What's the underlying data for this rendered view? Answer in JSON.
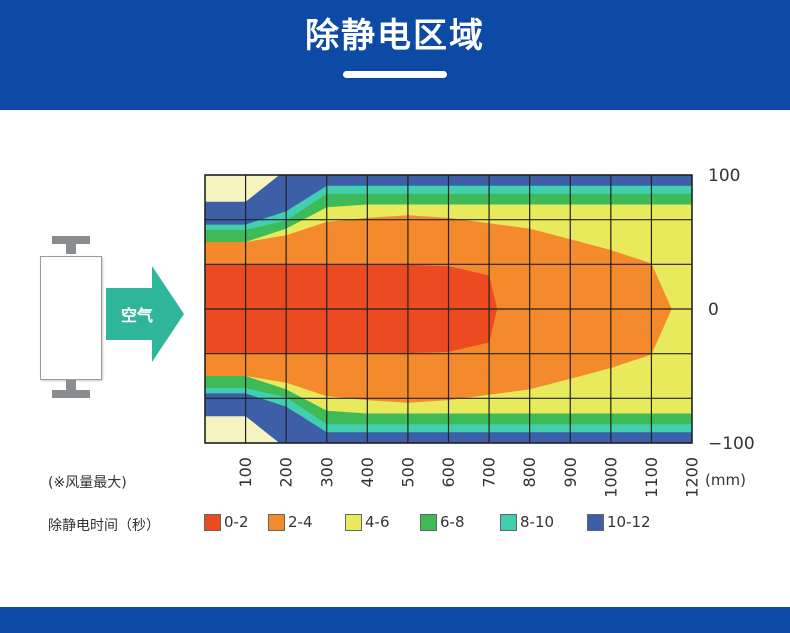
{
  "header": {
    "title": "除静电区域"
  },
  "arrow_label": "空气",
  "note": "(※风量最大)",
  "legend_title": "除静电时间（秒）",
  "chart_data": {
    "type": "heatmap",
    "title": "",
    "x_ticks": [
      "100",
      "200",
      "300",
      "400",
      "500",
      "600",
      "700",
      "800",
      "900",
      "1000",
      "1100",
      "1200"
    ],
    "x_unit": "(mm)",
    "xlim": [
      0,
      1200
    ],
    "y_ticks": [
      {
        "value": 100,
        "label": "100"
      },
      {
        "value": 0,
        "label": "0"
      },
      {
        "value": -100,
        "label": "−100"
      }
    ],
    "ylim": [
      -100,
      100
    ],
    "grid": true,
    "legend_position": "bottom",
    "legend": [
      {
        "label": "0-2",
        "color": "#ec4a20"
      },
      {
        "label": "2-4",
        "color": "#f48a2c"
      },
      {
        "label": "4-6",
        "color": "#e8ea5c"
      },
      {
        "label": "6-8",
        "color": "#3eba58"
      },
      {
        "label": "8-10",
        "color": "#40d0b0"
      },
      {
        "label": "10-12",
        "color": "#3d5fa8"
      }
    ],
    "zones": [
      {
        "level": "10-12",
        "profile": [
          [
            0,
            80
          ],
          [
            100,
            80
          ],
          [
            200,
            104
          ],
          [
            300,
            104
          ],
          [
            400,
            104
          ],
          [
            500,
            104
          ],
          [
            600,
            104
          ],
          [
            700,
            104
          ],
          [
            800,
            104
          ],
          [
            900,
            104
          ],
          [
            1000,
            104
          ],
          [
            1100,
            104
          ],
          [
            1200,
            104
          ]
        ]
      },
      {
        "level": "8-10",
        "profile": [
          [
            0,
            63
          ],
          [
            100,
            63
          ],
          [
            200,
            73
          ],
          [
            300,
            92
          ],
          [
            400,
            92
          ],
          [
            500,
            92
          ],
          [
            600,
            92
          ],
          [
            700,
            92
          ],
          [
            800,
            92
          ],
          [
            900,
            92
          ],
          [
            1000,
            92
          ],
          [
            1100,
            92
          ],
          [
            1200,
            92
          ]
        ]
      },
      {
        "level": "6-8",
        "profile": [
          [
            0,
            59
          ],
          [
            100,
            59
          ],
          [
            200,
            66
          ],
          [
            300,
            86
          ],
          [
            400,
            86
          ],
          [
            500,
            86
          ],
          [
            600,
            86
          ],
          [
            700,
            86
          ],
          [
            800,
            86
          ],
          [
            900,
            86
          ],
          [
            1000,
            86
          ],
          [
            1100,
            86
          ],
          [
            1200,
            86
          ]
        ]
      },
      {
        "level": "4-6",
        "profile": [
          [
            0,
            50
          ],
          [
            100,
            50
          ],
          [
            200,
            60
          ],
          [
            300,
            76
          ],
          [
            400,
            78
          ],
          [
            500,
            78
          ],
          [
            600,
            78
          ],
          [
            700,
            78
          ],
          [
            800,
            78
          ],
          [
            900,
            78
          ],
          [
            1000,
            78
          ],
          [
            1100,
            78
          ],
          [
            1200,
            78
          ]
        ]
      },
      {
        "level": "2-4",
        "profile": [
          [
            0,
            50
          ],
          [
            100,
            50
          ],
          [
            200,
            55
          ],
          [
            300,
            65
          ],
          [
            400,
            68
          ],
          [
            500,
            70
          ],
          [
            600,
            68
          ],
          [
            700,
            64
          ],
          [
            800,
            60
          ],
          [
            900,
            52
          ],
          [
            1000,
            44
          ],
          [
            1100,
            34
          ],
          [
            1150,
            0
          ]
        ]
      },
      {
        "level": "0-2",
        "profile": [
          [
            0,
            33
          ],
          [
            100,
            33
          ],
          [
            200,
            33
          ],
          [
            300,
            33
          ],
          [
            400,
            33
          ],
          [
            500,
            33
          ],
          [
            600,
            32
          ],
          [
            700,
            25
          ],
          [
            720,
            0
          ]
        ]
      }
    ]
  }
}
